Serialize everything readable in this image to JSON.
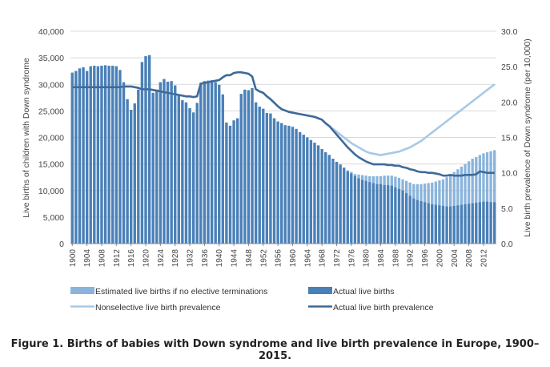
{
  "caption": "Figure 1. Births of babies with Down syndrome and live birth prevalence in Europe, 1900–2015.",
  "chart_data": {
    "type": "bar",
    "title": "",
    "xlabel": "",
    "ylabel": "Live births of children with Down syndrome",
    "y2label": "Live birth prevalence of Down syndrome (per 10,000)",
    "ylim": [
      0,
      40000
    ],
    "y2lim": [
      0,
      30
    ],
    "yticks": [
      "0",
      "5,000",
      "10,000",
      "15,000",
      "20,000",
      "25,000",
      "30,000",
      "35,000",
      "40,000"
    ],
    "y2ticks": [
      "0.0",
      "5.0",
      "10.0",
      "15.0",
      "20.0",
      "25.0",
      "30.0"
    ],
    "grid": true,
    "legend_position": "bottom",
    "colors": {
      "estimated_bars": "#8ab4dc",
      "actual_bars": "#4a80b8",
      "nonselective_line": "#a8c9e6",
      "actual_line": "#3e6a9a"
    },
    "x": [
      1900,
      1901,
      1902,
      1903,
      1904,
      1905,
      1906,
      1907,
      1908,
      1909,
      1910,
      1911,
      1912,
      1913,
      1914,
      1915,
      1916,
      1917,
      1918,
      1919,
      1920,
      1921,
      1922,
      1923,
      1924,
      1925,
      1926,
      1927,
      1928,
      1929,
      1930,
      1931,
      1932,
      1933,
      1934,
      1935,
      1936,
      1937,
      1938,
      1939,
      1940,
      1941,
      1942,
      1943,
      1944,
      1945,
      1946,
      1947,
      1948,
      1949,
      1950,
      1951,
      1952,
      1953,
      1954,
      1955,
      1956,
      1957,
      1958,
      1959,
      1960,
      1961,
      1962,
      1963,
      1964,
      1965,
      1966,
      1967,
      1968,
      1969,
      1970,
      1971,
      1972,
      1973,
      1974,
      1975,
      1976,
      1977,
      1978,
      1979,
      1980,
      1981,
      1982,
      1983,
      1984,
      1985,
      1986,
      1987,
      1988,
      1989,
      1990,
      1991,
      1992,
      1993,
      1994,
      1995,
      1996,
      1997,
      1998,
      1999,
      2000,
      2001,
      2002,
      2003,
      2004,
      2005,
      2006,
      2007,
      2008,
      2009,
      2010,
      2011,
      2012,
      2013,
      2014,
      2015
    ],
    "series": [
      {
        "name": "Estimated live births if no elective terminations",
        "kind": "bar",
        "values": [
          32200,
          32500,
          33000,
          33200,
          32500,
          33400,
          33500,
          33400,
          33500,
          33600,
          33500,
          33500,
          33400,
          32700,
          30400,
          27200,
          25200,
          26400,
          29000,
          34200,
          35300,
          35500,
          28400,
          29000,
          30400,
          31000,
          30500,
          30600,
          29800,
          28000,
          27000,
          26600,
          25500,
          24700,
          26500,
          30300,
          30600,
          30700,
          30800,
          30400,
          29900,
          28100,
          22800,
          22200,
          23200,
          23600,
          28200,
          29000,
          28900,
          29300,
          26600,
          25800,
          25400,
          24600,
          24500,
          23600,
          23000,
          22700,
          22300,
          22200,
          22000,
          21600,
          21000,
          20500,
          20000,
          19500,
          19000,
          18500,
          17800,
          17200,
          16700,
          16000,
          15400,
          14900,
          14300,
          13800,
          13500,
          13100,
          13000,
          12900,
          12800,
          12700,
          12700,
          12700,
          12700,
          12800,
          12800,
          12800,
          12600,
          12400,
          12100,
          11800,
          11500,
          11200,
          11200,
          11200,
          11300,
          11400,
          11500,
          11700,
          11900,
          12100,
          12500,
          13000,
          13500,
          14000,
          14500,
          15000,
          15500,
          16000,
          16300,
          16700,
          17000,
          17200,
          17400,
          17600
        ]
      },
      {
        "name": "Actual live births",
        "kind": "bar",
        "values": [
          32200,
          32500,
          33000,
          33200,
          32500,
          33400,
          33500,
          33400,
          33500,
          33600,
          33500,
          33500,
          33400,
          32700,
          30400,
          27200,
          25200,
          26400,
          29000,
          34200,
          35300,
          35500,
          28400,
          29000,
          30400,
          31000,
          30500,
          30600,
          29800,
          28000,
          27000,
          26600,
          25500,
          24700,
          26500,
          30300,
          30600,
          30700,
          30800,
          30400,
          29900,
          28100,
          22800,
          22200,
          23200,
          23600,
          28200,
          29000,
          28900,
          29300,
          26600,
          25800,
          25400,
          24600,
          24500,
          23600,
          23000,
          22700,
          22300,
          22200,
          22000,
          21600,
          21000,
          20500,
          20000,
          19500,
          19000,
          18500,
          17800,
          17200,
          16700,
          16000,
          15400,
          14900,
          14300,
          13600,
          13200,
          12700,
          12300,
          12000,
          11800,
          11600,
          11400,
          11200,
          11200,
          11000,
          11000,
          10900,
          10600,
          10300,
          10000,
          9500,
          9000,
          8500,
          8200,
          8000,
          7800,
          7600,
          7400,
          7300,
          7200,
          7100,
          7000,
          7000,
          7100,
          7200,
          7300,
          7400,
          7500,
          7600,
          7700,
          7800,
          7900,
          7900,
          7800,
          7800
        ]
      },
      {
        "name": "Nonselective live birth prevalence",
        "kind": "line",
        "axis": "right",
        "values": [
          22.1,
          22.1,
          22.1,
          22.1,
          22.1,
          22.1,
          22.1,
          22.1,
          22.1,
          22.1,
          22.1,
          22.1,
          22.1,
          22.1,
          22.2,
          22.2,
          22.2,
          22.1,
          22.0,
          21.8,
          21.8,
          21.8,
          21.7,
          21.6,
          21.5,
          21.4,
          21.3,
          21.2,
          21.1,
          21.0,
          20.9,
          20.8,
          20.8,
          20.7,
          20.8,
          22.6,
          22.7,
          22.8,
          22.9,
          23.0,
          23.1,
          23.5,
          23.8,
          23.8,
          24.1,
          24.2,
          24.2,
          24.1,
          24.0,
          23.6,
          21.8,
          21.5,
          21.3,
          20.8,
          20.4,
          19.9,
          19.4,
          19.0,
          18.8,
          18.6,
          18.5,
          18.4,
          18.3,
          18.2,
          18.1,
          18.0,
          17.9,
          17.7,
          17.5,
          17.0,
          16.6,
          16.2,
          15.8,
          15.4,
          15.0,
          14.6,
          14.2,
          13.9,
          13.6,
          13.3,
          13.0,
          12.8,
          12.7,
          12.6,
          12.5,
          12.6,
          12.7,
          12.8,
          12.9,
          13.0,
          13.2,
          13.4,
          13.6,
          13.9,
          14.2,
          14.5,
          14.9,
          15.3,
          15.7,
          16.1,
          16.5,
          16.9,
          17.3,
          17.7,
          18.1,
          18.5,
          18.9,
          19.3,
          19.7,
          20.1,
          20.5,
          20.9,
          21.3,
          21.7,
          22.1,
          22.5
        ]
      },
      {
        "name": "Actual live birth prevalence",
        "kind": "line",
        "axis": "right",
        "values": [
          22.1,
          22.1,
          22.1,
          22.1,
          22.1,
          22.1,
          22.1,
          22.1,
          22.1,
          22.1,
          22.1,
          22.1,
          22.1,
          22.1,
          22.2,
          22.2,
          22.2,
          22.1,
          22.0,
          21.8,
          21.8,
          21.8,
          21.7,
          21.6,
          21.5,
          21.4,
          21.3,
          21.2,
          21.1,
          21.0,
          20.9,
          20.8,
          20.8,
          20.7,
          20.8,
          22.6,
          22.7,
          22.8,
          22.9,
          23.0,
          23.1,
          23.5,
          23.8,
          23.8,
          24.1,
          24.2,
          24.2,
          24.1,
          24.0,
          23.6,
          21.8,
          21.5,
          21.3,
          20.8,
          20.4,
          19.9,
          19.4,
          19.0,
          18.8,
          18.6,
          18.5,
          18.4,
          18.3,
          18.2,
          18.1,
          18.0,
          17.9,
          17.7,
          17.5,
          17.0,
          16.6,
          16.0,
          15.4,
          14.8,
          14.2,
          13.6,
          13.1,
          12.6,
          12.2,
          11.9,
          11.6,
          11.4,
          11.2,
          11.2,
          11.2,
          11.2,
          11.1,
          11.1,
          11.0,
          11.0,
          10.8,
          10.7,
          10.5,
          10.4,
          10.2,
          10.1,
          10.1,
          10.0,
          10.0,
          9.9,
          9.8,
          9.6,
          9.6,
          9.7,
          9.6,
          9.6,
          9.6,
          9.7,
          9.7,
          9.7,
          9.8,
          10.2,
          10.1,
          10.0,
          10.0,
          10.0
        ]
      }
    ]
  }
}
